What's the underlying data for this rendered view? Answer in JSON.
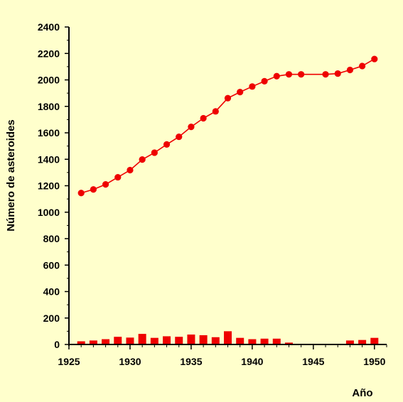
{
  "chart_data": {
    "type": "line",
    "title": "",
    "xlabel": "Año",
    "ylabel": "Número de asteroides",
    "xlim": [
      1925,
      1951
    ],
    "ylim": [
      0,
      2400
    ],
    "x_ticks": [
      1925,
      1930,
      1935,
      1940,
      1945,
      1950
    ],
    "y_ticks": [
      0,
      200,
      400,
      600,
      800,
      1000,
      1200,
      1400,
      1600,
      1800,
      2000,
      2200,
      2400
    ],
    "grid": false,
    "legend": "none",
    "colors": {
      "line": "#EE0000",
      "bars": "#EE0000",
      "axis": "#000000",
      "background": "#FFFFCC"
    },
    "series": [
      {
        "type": "line",
        "x": [
          1926,
          1927,
          1928,
          1929,
          1930,
          1931,
          1932,
          1933,
          1934,
          1935,
          1936,
          1937,
          1938,
          1939,
          1940,
          1941,
          1942,
          1943,
          1944,
          1946,
          1947,
          1948,
          1949,
          1950
        ],
        "values": [
          1145,
          1172,
          1210,
          1264,
          1318,
          1398,
          1450,
          1512,
          1570,
          1645,
          1710,
          1762,
          1862,
          1908,
          1950,
          1990,
          2028,
          2042,
          2042,
          2042,
          2048,
          2075,
          2105,
          2158
        ]
      },
      {
        "type": "bar",
        "x": [
          1926,
          1927,
          1928,
          1929,
          1930,
          1931,
          1932,
          1933,
          1934,
          1935,
          1936,
          1937,
          1938,
          1939,
          1940,
          1941,
          1942,
          1943,
          1944,
          1945,
          1946,
          1947,
          1948,
          1949,
          1950
        ],
        "values": [
          24,
          30,
          40,
          58,
          52,
          80,
          50,
          62,
          58,
          75,
          70,
          55,
          100,
          50,
          40,
          44,
          44,
          14,
          0,
          0,
          0,
          0,
          30,
          34,
          50
        ]
      }
    ]
  }
}
